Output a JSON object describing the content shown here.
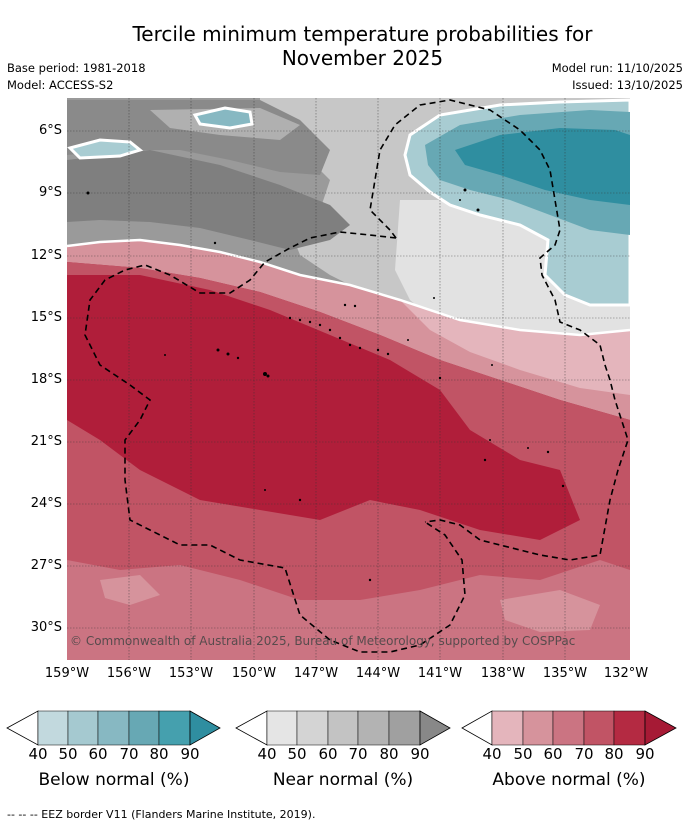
{
  "title_line1": "Tercile minimum temperature probabilities for",
  "title_line2": "November 2025",
  "base_period": "Base period: 1981-2018",
  "model": "Model: ACCESS-S2",
  "model_run": "Model run: 11/10/2025",
  "issued": "Issued: 13/10/2025",
  "copyright": "© Commonwealth of Australia 2025, Bureau of Meteorology, supported by COSPPac",
  "footnote": "--  --  -- EEZ border V11 (Flanders Marine Institute, 2019).",
  "lat_labels": [
    "6°S",
    "9°S",
    "12°S",
    "15°S",
    "18°S",
    "21°S",
    "24°S",
    "27°S",
    "30°S"
  ],
  "lon_labels": [
    "159°W",
    "156°W",
    "153°W",
    "150°W",
    "147°W",
    "144°W",
    "141°W",
    "138°W",
    "135°W",
    "132°W"
  ],
  "colorbars": [
    {
      "name": "Below normal (%)",
      "ticks": [
        "40",
        "50",
        "60",
        "70",
        "80",
        "90"
      ],
      "colors": [
        "#ffffff",
        "#c2d9de",
        "#a5c9d0",
        "#87b8c2",
        "#67a8b4",
        "#45a0ae",
        "#2f8ea0"
      ]
    },
    {
      "name": "Near normal (%)",
      "ticks": [
        "40",
        "50",
        "60",
        "70",
        "80",
        "90"
      ],
      "colors": [
        "#ffffff",
        "#e5e5e5",
        "#d4d4d4",
        "#c3c3c3",
        "#b3b3b3",
        "#a0a0a0",
        "#888888"
      ]
    },
    {
      "name": "Above normal (%)",
      "ticks": [
        "40",
        "50",
        "60",
        "70",
        "80",
        "90"
      ],
      "colors": [
        "#ffffff",
        "#e4b5bc",
        "#d6939c",
        "#cb7482",
        "#c15465",
        "#b42a42",
        "#a61a35"
      ]
    }
  ]
}
